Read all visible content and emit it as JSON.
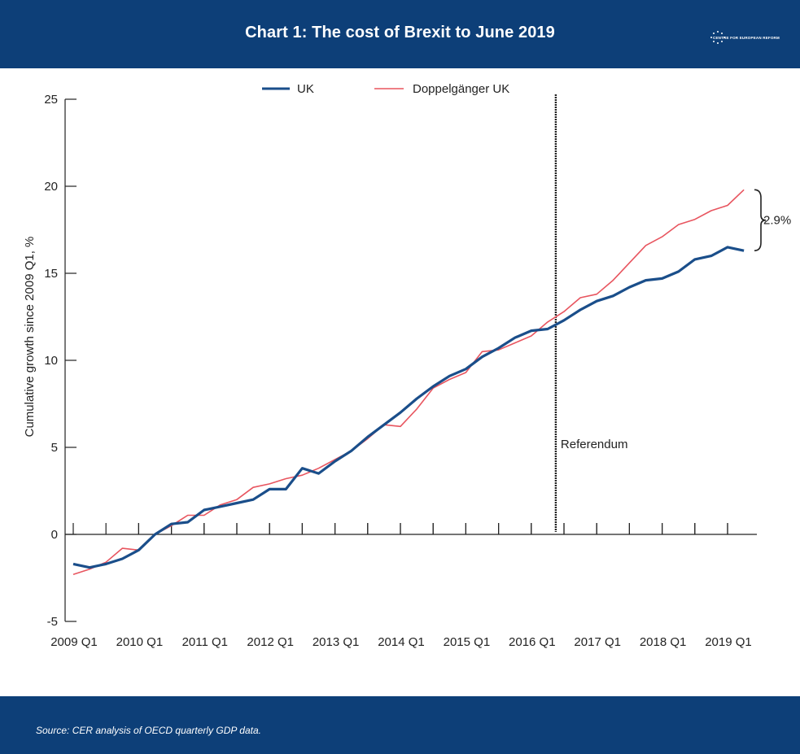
{
  "header": {
    "title": "Chart 1: The cost of Brexit to June 2019"
  },
  "logo": {
    "text": "CENTRE FOR EUROPEAN REFORM"
  },
  "footer": {
    "source": "Source:  CER analysis of OECD quarterly GDP data."
  },
  "colors": {
    "brand": "#0d3f78",
    "uk": "#1a4e8a",
    "doppelganger": "#e8555f"
  },
  "chart_data": {
    "type": "line",
    "title": "",
    "xlabel": "",
    "ylabel": "Cumulative growth since 2009 Q1, %",
    "ylim": [
      -5,
      25
    ],
    "yticks": [
      -5,
      0,
      5,
      10,
      15,
      20,
      25
    ],
    "grid": false,
    "legend_position": "top-center",
    "x_tick_labels": [
      "2009 Q1",
      "2010 Q1",
      "2011 Q1",
      "2012 Q1",
      "2013 Q1",
      "2014 Q1",
      "2015 Q1",
      "2016 Q1",
      "2017 Q1",
      "2018 Q1",
      "2019 Q1"
    ],
    "x": [
      "2009 Q1",
      "2009 Q2",
      "2009 Q3",
      "2009 Q4",
      "2010 Q1",
      "2010 Q2",
      "2010 Q3",
      "2010 Q4",
      "2011 Q1",
      "2011 Q2",
      "2011 Q3",
      "2011 Q4",
      "2012 Q1",
      "2012 Q2",
      "2012 Q3",
      "2012 Q4",
      "2013 Q1",
      "2013 Q2",
      "2013 Q3",
      "2013 Q4",
      "2014 Q1",
      "2014 Q2",
      "2014 Q3",
      "2014 Q4",
      "2015 Q1",
      "2015 Q2",
      "2015 Q3",
      "2015 Q4",
      "2016 Q1",
      "2016 Q2",
      "2016 Q3",
      "2016 Q4",
      "2017 Q1",
      "2017 Q2",
      "2017 Q3",
      "2017 Q4",
      "2018 Q1",
      "2018 Q2",
      "2018 Q3",
      "2018 Q4",
      "2019 Q1",
      "2019 Q2"
    ],
    "series": [
      {
        "name": "UK",
        "values": [
          -1.7,
          -1.9,
          -1.7,
          -1.4,
          -0.9,
          0.0,
          0.6,
          0.7,
          1.4,
          1.6,
          1.8,
          2.0,
          2.6,
          2.6,
          3.8,
          3.5,
          4.2,
          4.8,
          5.6,
          6.3,
          7.0,
          7.8,
          8.5,
          9.1,
          9.5,
          10.2,
          10.7,
          11.3,
          11.7,
          11.8,
          12.3,
          12.9,
          13.4,
          13.7,
          14.2,
          14.6,
          14.7,
          15.1,
          15.8,
          16.0,
          16.5,
          16.3
        ]
      },
      {
        "name": "Doppelgänger UK",
        "values": [
          -2.3,
          -2.0,
          -1.6,
          -0.8,
          -0.9,
          0.0,
          0.5,
          1.1,
          1.1,
          1.7,
          2.0,
          2.7,
          2.9,
          3.2,
          3.4,
          3.8,
          4.3,
          4.8,
          5.5,
          6.3,
          6.2,
          7.2,
          8.4,
          8.9,
          9.3,
          10.5,
          10.6,
          11.0,
          11.4,
          12.2,
          12.8,
          13.6,
          13.8,
          14.6,
          15.6,
          16.6,
          17.1,
          17.8,
          18.1,
          18.6,
          18.9,
          19.8
        ]
      }
    ],
    "annotations": [
      {
        "text": "Referendum",
        "x": "2016 Q2"
      },
      {
        "text": "2.9%",
        "between": [
          "UK",
          "Doppelgänger UK"
        ],
        "at": "2019 Q2"
      }
    ]
  }
}
